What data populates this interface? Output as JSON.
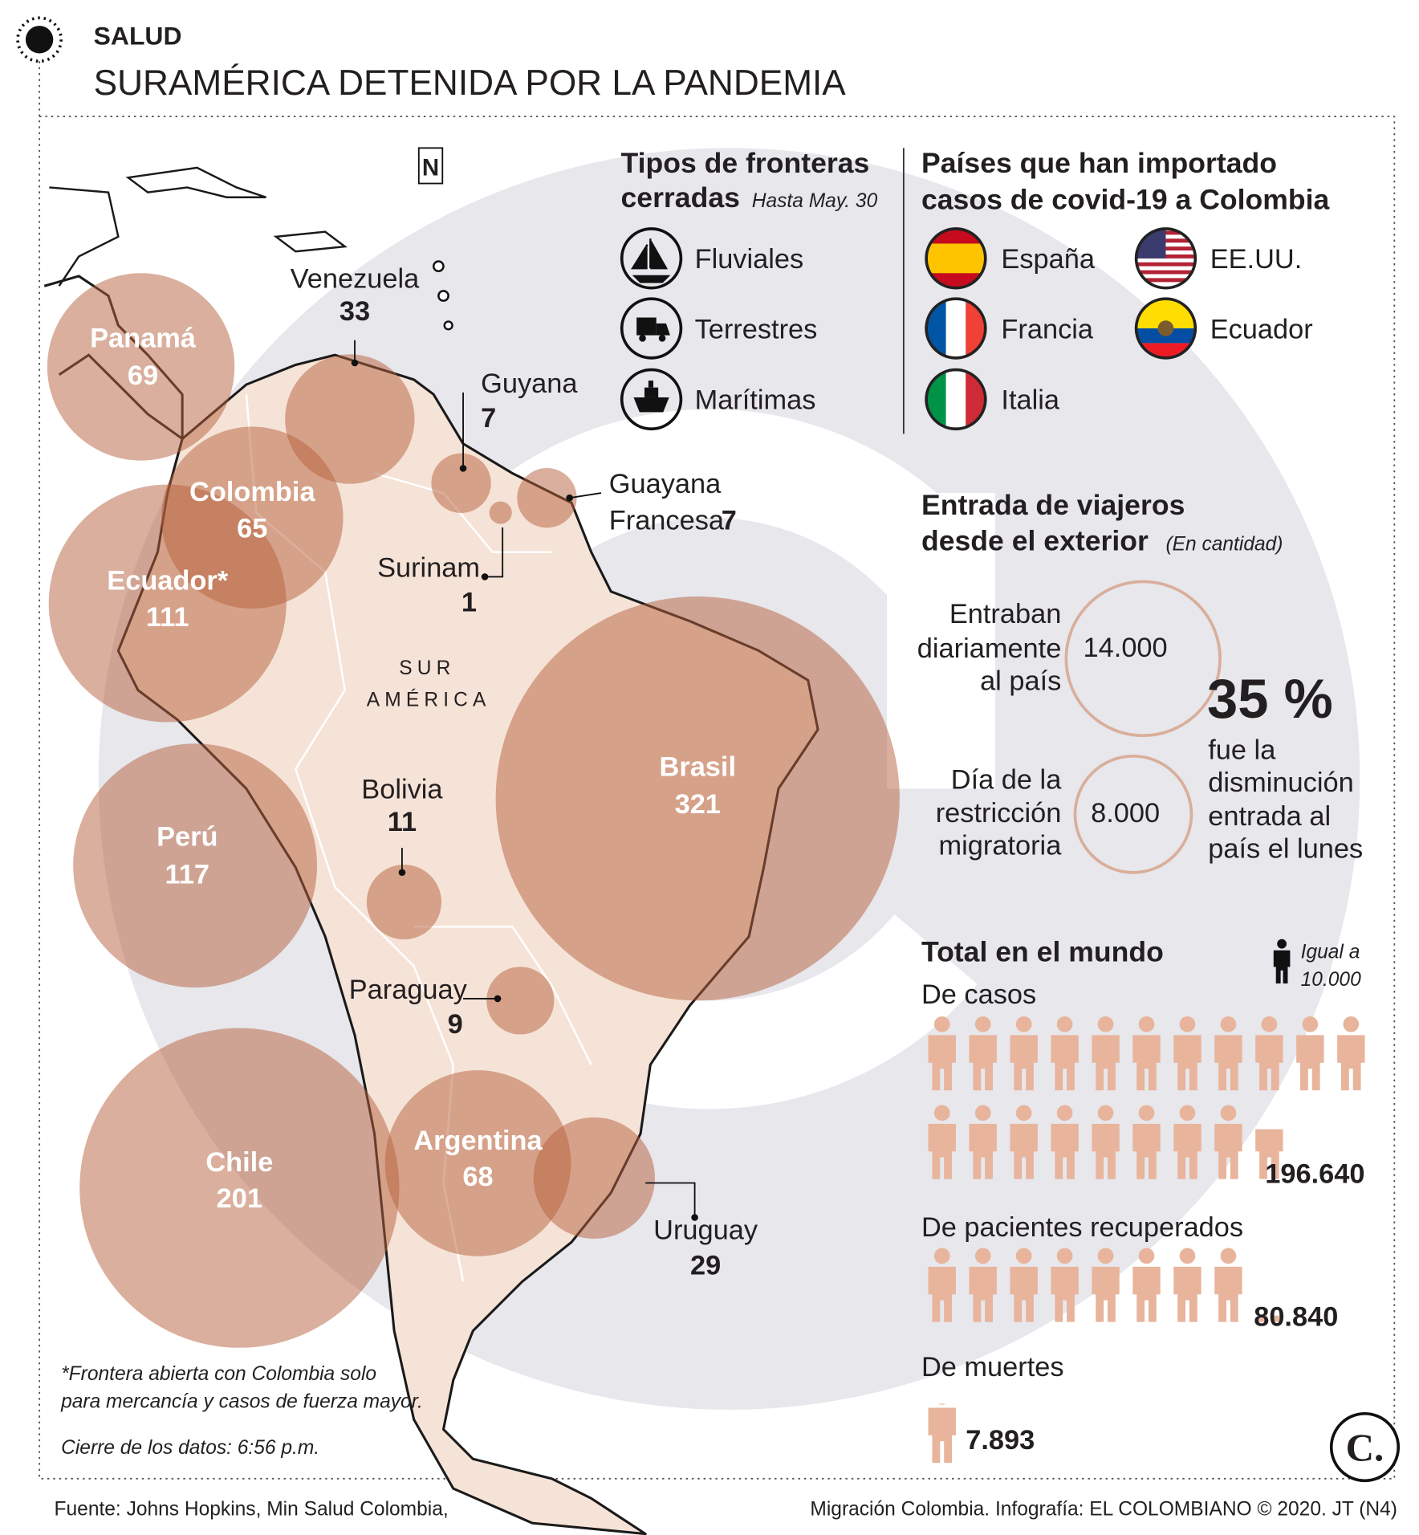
{
  "header": {
    "section": "SALUD",
    "title": "SURAMÉRICA DETENIDA POR LA PANDEMIA"
  },
  "map": {
    "north": "N",
    "region_label": [
      "SUR",
      "AMÉRICA"
    ],
    "countries": [
      {
        "name": "Panamá",
        "value": 69
      },
      {
        "name": "Venezuela",
        "value": 33
      },
      {
        "name": "Guyana",
        "value": 7
      },
      {
        "name": "Colombia",
        "value": 65
      },
      {
        "name": "Ecuador*",
        "value": 111
      },
      {
        "name": "Guayana Francesa",
        "value": 7
      },
      {
        "name": "Surinam",
        "value": 1
      },
      {
        "name": "Brasil",
        "value": 321
      },
      {
        "name": "Perú",
        "value": 117
      },
      {
        "name": "Bolivia",
        "value": 11
      },
      {
        "name": "Paraguay",
        "value": 9
      },
      {
        "name": "Chile",
        "value": 201
      },
      {
        "name": "Argentina",
        "value": 68
      },
      {
        "name": "Uruguay",
        "value": 29
      }
    ]
  },
  "borders": {
    "title": [
      "Tipos de fronteras",
      "cerradas"
    ],
    "note": "Hasta May. 30",
    "items": [
      "Fluviales",
      "Terrestres",
      "Marítimas"
    ]
  },
  "imported": {
    "title": [
      "Países que han importado",
      "casos de covid-19 a Colombia"
    ],
    "items": [
      "España",
      "EE.UU.",
      "Francia",
      "Ecuador",
      "Italia"
    ]
  },
  "travelers": {
    "title": [
      "Entrada de viajeros",
      "desde el exterior"
    ],
    "note": "(En cantidad)",
    "rows": [
      {
        "label": [
          "Entraban",
          "diariamente",
          "al país"
        ],
        "value": 14000,
        "value_label": "14.000"
      },
      {
        "label": [
          "Día de la",
          "restricción",
          "migratoria"
        ],
        "value": 8000,
        "value_label": "8.000"
      }
    ],
    "percent": "35 %",
    "percent_text": [
      "fue la",
      "disminución",
      "entrada al",
      "país el lunes"
    ]
  },
  "world": {
    "title": "Total en el mundo",
    "unit": {
      "text": "Igual a",
      "value": 10000,
      "label": "10.000"
    },
    "groups": [
      {
        "label": "De casos",
        "value": 196640,
        "value_label": "196.640"
      },
      {
        "label": "De pacientes recuperados",
        "value": 80840,
        "value_label": "80.840"
      },
      {
        "label": "De muertes",
        "value": 7893,
        "value_label": "7.893"
      }
    ]
  },
  "notes": [
    "*Frontera abierta con Colombia solo",
    "para mercancía y casos de fuerza mayor.",
    "Cierre de los datos: 6:56 p.m."
  ],
  "logo": "C.",
  "source": [
    "Fuente: Johns Hopkins, Min Salud Colombia,",
    "Migración Colombia. Infografía: EL COLOMBIANO © 2020. JT (N4)"
  ]
}
